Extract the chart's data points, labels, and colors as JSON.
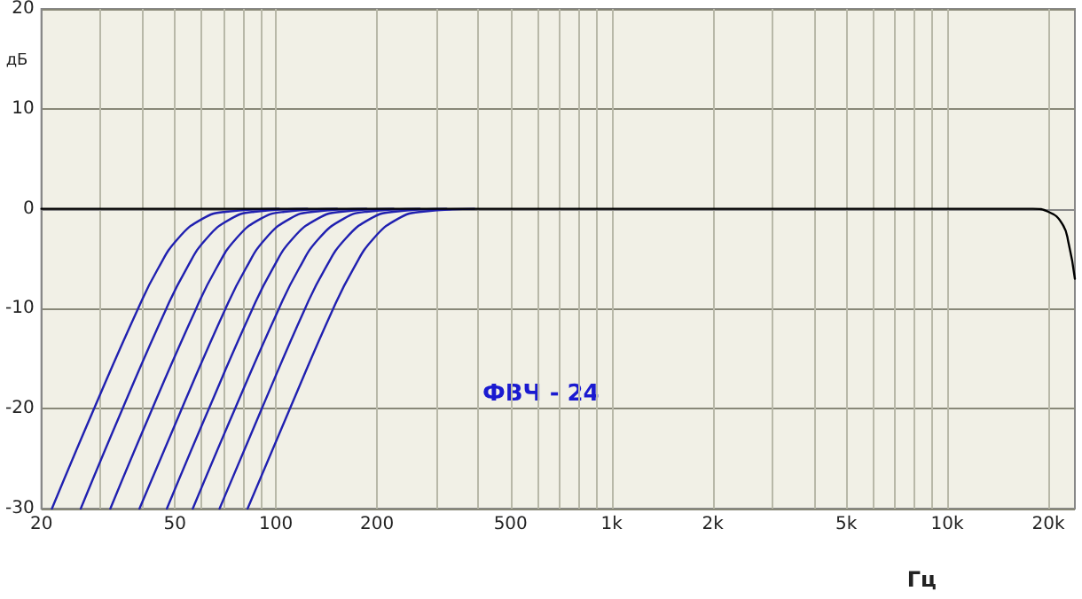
{
  "chart_data": {
    "type": "line",
    "xlabel": "Гц",
    "ylabel": "дБ",
    "annotations": [
      "ФВЧ - 24"
    ],
    "xlim": [
      20,
      24000
    ],
    "ylim": [
      -30,
      20
    ],
    "xticks": [
      20,
      {
        "value": 30,
        "label": null
      },
      {
        "value": 40,
        "label": null
      },
      50,
      {
        "value": 60,
        "label": null
      },
      {
        "value": 70,
        "label": null
      },
      {
        "value": 80,
        "label": null
      },
      {
        "value": 90,
        "label": null
      },
      100,
      200,
      {
        "value": 300,
        "label": null
      },
      {
        "value": 400,
        "label": null
      },
      500,
      {
        "value": 600,
        "label": null
      },
      {
        "value": 700,
        "label": null
      },
      {
        "value": 800,
        "label": null
      },
      {
        "value": 900,
        "label": null
      },
      {
        "value": 1000,
        "label": "1k"
      },
      {
        "value": 2000,
        "label": "2k"
      },
      {
        "value": 3000,
        "label": null
      },
      {
        "value": 4000,
        "label": null
      },
      {
        "value": 5000,
        "label": "5k"
      },
      {
        "value": 6000,
        "label": null
      },
      {
        "value": 7000,
        "label": null
      },
      {
        "value": 8000,
        "label": null
      },
      {
        "value": 9000,
        "label": null
      },
      {
        "value": 10000,
        "label": "10k"
      },
      {
        "value": 20000,
        "label": "20k"
      }
    ],
    "yticks": [
      -30,
      -20,
      -10,
      0,
      10,
      20
    ],
    "log": "x",
    "grid": true,
    "marker": "none",
    "line_style": "solid",
    "series": [
      {
        "color": "#000000",
        "x": [
          20,
          1000,
          10000,
          15000,
          18000,
          20000,
          22000,
          23000,
          24000
        ],
        "values": [
          0,
          0,
          0,
          0,
          0,
          -0.3,
          -1.5,
          -3.5,
          -7
        ]
      },
      {
        "color": "#2020b0",
        "x": [
          21.5,
          28.7,
          38.8,
          44.5,
          51,
          60.4,
          70.9,
          102
        ],
        "values": [
          -30,
          -20,
          -10,
          -6,
          -3,
          -1,
          -0.3,
          0
        ]
      },
      {
        "color": "#2020b0",
        "x": [
          26.2,
          34.9,
          47.1,
          54.1,
          62,
          73.4,
          86.2,
          124
        ],
        "values": [
          -30,
          -20,
          -10,
          -6,
          -3,
          -1,
          -0.3,
          0
        ]
      },
      {
        "color": "#2020b0",
        "x": [
          32.1,
          42.8,
          57.8,
          66.3,
          76,
          90,
          106,
          152
        ],
        "values": [
          -30,
          -20,
          -10,
          -6,
          -3,
          -1,
          -0.3,
          0
        ]
      },
      {
        "color": "#2020b0",
        "x": [
          39.2,
          52.4,
          70.7,
          81.2,
          93,
          110,
          129,
          186
        ],
        "values": [
          -30,
          -20,
          -10,
          -6,
          -3,
          -1,
          -0.3,
          0
        ]
      },
      {
        "color": "#2020b0",
        "x": [
          47.3,
          63.1,
          85.1,
          97.7,
          112,
          133,
          156,
          224
        ],
        "values": [
          -30,
          -20,
          -10,
          -6,
          -3,
          -1,
          -0.3,
          0
        ]
      },
      {
        "color": "#2020b0",
        "x": [
          56.5,
          75.5,
          102,
          117,
          134,
          159,
          186,
          268
        ],
        "values": [
          -30,
          -20,
          -10,
          -6,
          -3,
          -1,
          -0.3,
          0
        ]
      },
      {
        "color": "#2020b0",
        "x": [
          67.9,
          90.7,
          122,
          140,
          161,
          191,
          224,
          322
        ],
        "values": [
          -30,
          -20,
          -10,
          -6,
          -3,
          -1,
          -0.3,
          0
        ]
      },
      {
        "color": "#2020b0",
        "x": [
          82.3,
          110,
          148,
          170,
          195,
          231,
          271,
          390
        ],
        "values": [
          -30,
          -20,
          -10,
          -6,
          -3,
          -1,
          -0.3,
          0
        ]
      }
    ]
  }
}
